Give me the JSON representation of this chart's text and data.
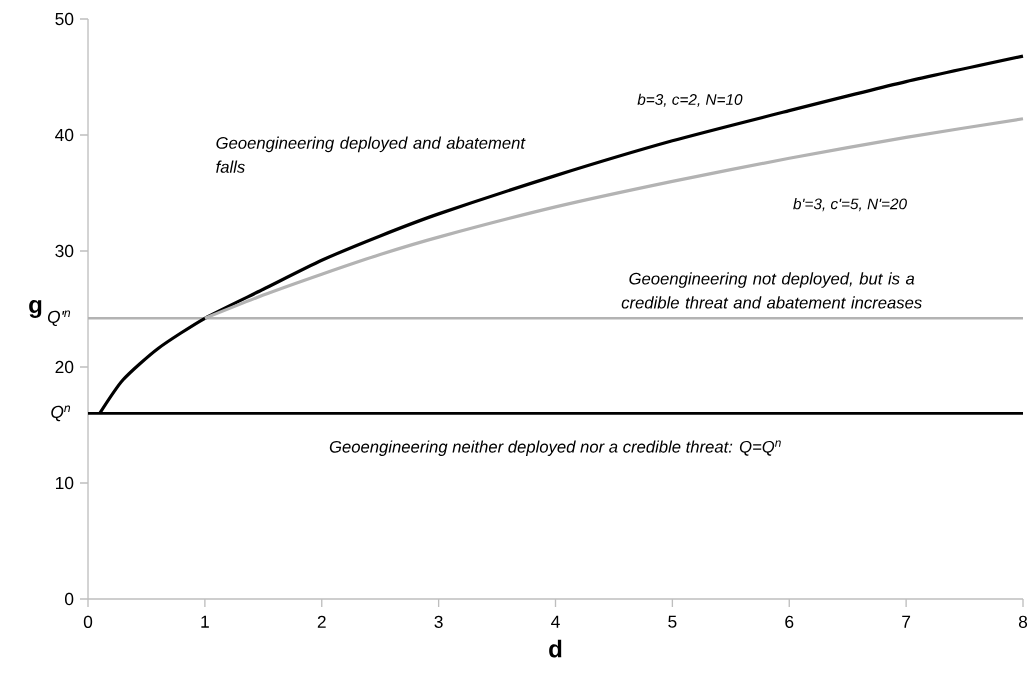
{
  "chart_data": {
    "type": "line",
    "xlabel": "d",
    "ylabel": "g",
    "xlim": [
      0,
      8
    ],
    "ylim": [
      0,
      50
    ],
    "xticks": [
      0,
      1,
      2,
      3,
      4,
      5,
      6,
      7,
      8
    ],
    "yticks": [
      0,
      10,
      20,
      30,
      40,
      50
    ],
    "grid": false,
    "legend": false,
    "marker": "none",
    "line_style": "solid",
    "series": [
      {
        "name": "b=3, c=2, N=10",
        "color": "#000000",
        "x": [
          0.1,
          0.3,
          0.6,
          1,
          1.5,
          2,
          2.5,
          3,
          4,
          5,
          6,
          7,
          8
        ],
        "values": [
          16,
          18.9,
          21.6,
          24.2,
          26.7,
          29.2,
          31.3,
          33.2,
          36.5,
          39.5,
          42.1,
          44.6,
          46.8
        ]
      },
      {
        "name": "b'=3, c'=5, N'=20",
        "color": "#b3b3b3",
        "x": [
          1,
          1.5,
          2,
          2.5,
          3,
          4,
          5,
          6,
          7,
          8
        ],
        "values": [
          24.2,
          26.2,
          28.0,
          29.7,
          31.2,
          33.8,
          36.0,
          38.0,
          39.8,
          41.4
        ]
      }
    ],
    "ref_lines": [
      {
        "axis": "y",
        "value": 16,
        "label": "Q$^{n}$",
        "color": "#000000"
      },
      {
        "axis": "y",
        "value": 24.2,
        "label": "Q'$^{n}$",
        "color": "#b3b3b3"
      }
    ],
    "annotations": [
      "Geoengineering deployed and abatement falls",
      "Geoengineering not deployed, but is a credible threat and abatement increases",
      "Geoengineering neither deployed nor a credible threat: Q=Q$^{n}$"
    ]
  }
}
